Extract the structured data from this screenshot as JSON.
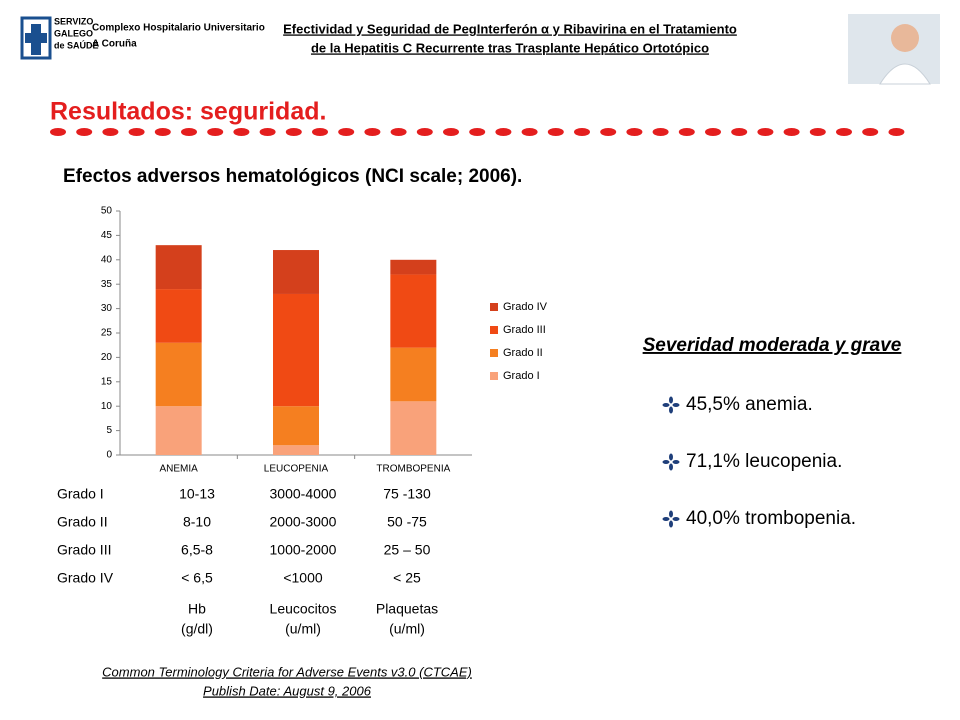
{
  "header": {
    "logo": [
      "SERVIZO",
      "GALEGO",
      "de SAÚDE",
      "Complexo Hospitalario Universitario",
      "A Coruña"
    ],
    "title": [
      "Efectividad y Seguridad de PegInterferón α y Ribavirina en el Tratamiento",
      "de la Hepatitis C Recurrente tras Trasplante Hepático Ortotópico"
    ]
  },
  "section_title": "Resultados: seguridad.",
  "subtitle": "Efectos adversos hematológicos (NCI scale; 2006).",
  "chart_data": {
    "type": "stacked_bar",
    "categories": [
      "ANEMIA",
      "LEUCOPENIA",
      "TROMBOPENIA"
    ],
    "series": [
      {
        "name": "Grado I",
        "color": "#f9a27a",
        "values": [
          10,
          2,
          11
        ]
      },
      {
        "name": "Grado II",
        "color": "#f57f20",
        "values": [
          13,
          8,
          11
        ]
      },
      {
        "name": "Grado III",
        "color": "#f04a14",
        "values": [
          11,
          23,
          15
        ]
      },
      {
        "name": "Grado IV",
        "color": "#d4401c",
        "values": [
          9,
          9,
          3
        ]
      }
    ],
    "ylim": [
      0,
      50
    ],
    "yticks": [
      0,
      5,
      10,
      15,
      20,
      25,
      30,
      35,
      40,
      45,
      50
    ],
    "legend": "right"
  },
  "table": {
    "rows": [
      [
        "Grado I",
        "10-13",
        "3000-4000",
        "75 -130"
      ],
      [
        "Grado II",
        "8-10",
        "2000-3000",
        "50 -75"
      ],
      [
        "Grado III",
        "6,5-8",
        "1000-2000",
        "25 – 50"
      ],
      [
        "Grado IV",
        "< 6,5",
        "<1000",
        "< 25"
      ]
    ],
    "columns": [
      {
        "name": "Hb",
        "unit": "(g/dl)"
      },
      {
        "name": "Leucocitos",
        "unit": "(u/ml)"
      },
      {
        "name": "Plaquetas",
        "unit": "(u/ml)"
      }
    ]
  },
  "citation": [
    "Common Terminology Criteria for Adverse Events v3.0 (CTCAE)",
    "Publish Date: August 9, 2006"
  ],
  "summary": {
    "title": "Severidad moderada y grave",
    "items": [
      "45,5% anemia.",
      "71,1% leucopenia.",
      "40,0% trombopenia."
    ]
  }
}
